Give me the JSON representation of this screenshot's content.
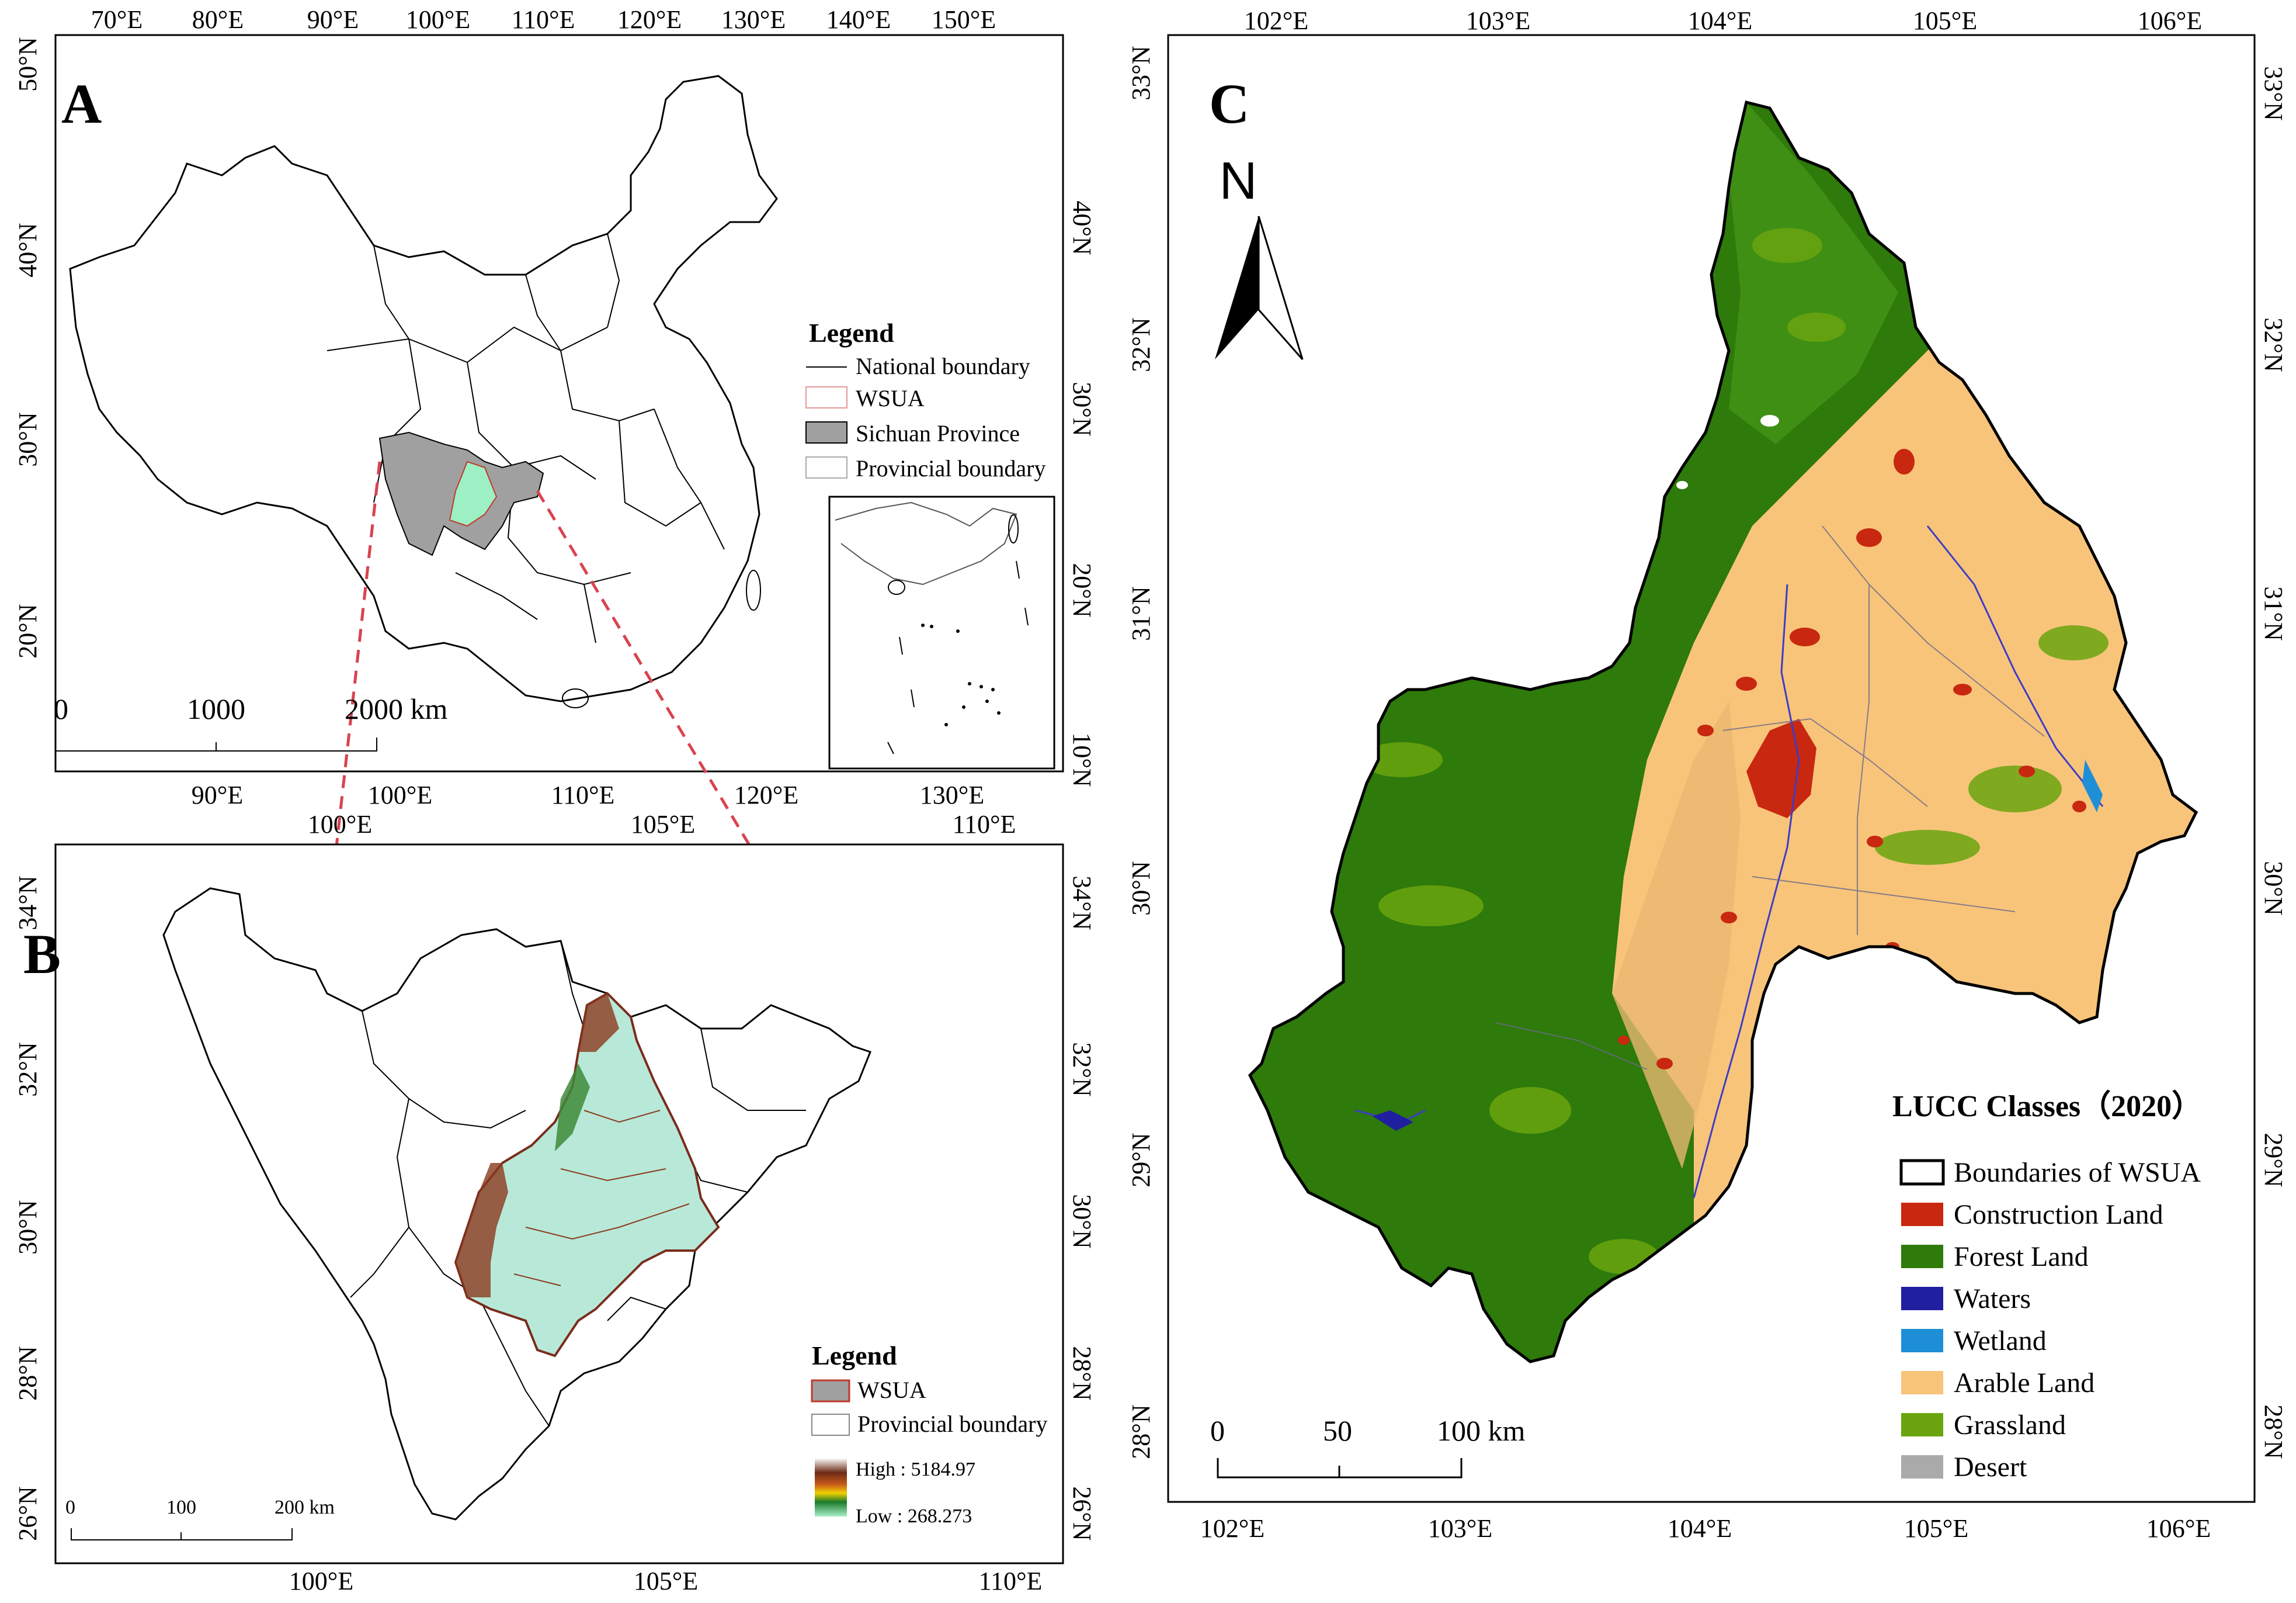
{
  "panelA": {
    "label": "A",
    "top_ticks": [
      "70°E",
      "80°E",
      "90°E",
      "100°E",
      "110°E",
      "120°E",
      "130°E",
      "140°E",
      "150°E"
    ],
    "bottom_ticks": [
      "90°E",
      "100°E",
      "110°E",
      "120°E",
      "130°E"
    ],
    "left_ticks": [
      "50°N",
      "40°N",
      "30°N",
      "20°N"
    ],
    "right_ticks": [
      "40°N",
      "30°N",
      "20°N",
      "10°N"
    ],
    "legend": {
      "title": "Legend",
      "items": [
        "National boundary",
        "WSUA",
        "Sichuan Province",
        "Provincial boundary"
      ]
    },
    "scale": {
      "labels": [
        "0",
        "1000",
        "2000 km"
      ]
    }
  },
  "panelB": {
    "label": "B",
    "top_ticks": [
      "100°E",
      "105°E",
      "110°E"
    ],
    "bottom_ticks": [
      "100°E",
      "105°E",
      "110°E"
    ],
    "left_ticks": [
      "34°N",
      "32°N",
      "30°N",
      "28°N",
      "26°N"
    ],
    "right_ticks": [
      "34°N",
      "32°N",
      "30°N",
      "28°N",
      "26°N"
    ],
    "legend": {
      "title": "Legend",
      "items": [
        "WSUA",
        "Provincial boundary"
      ],
      "high": "High : 5184.97",
      "low": "Low : 268.273"
    },
    "scale": {
      "labels": [
        "0",
        "100",
        "200 km"
      ]
    }
  },
  "panelC": {
    "label": "C",
    "north": "N",
    "top_ticks": [
      "102°E",
      "103°E",
      "104°E",
      "105°E",
      "106°E"
    ],
    "bottom_ticks": [
      "102°E",
      "103°E",
      "104°E",
      "105°E",
      "106°E"
    ],
    "left_ticks": [
      "33°N",
      "32°N",
      "31°N",
      "30°N",
      "29°N",
      "28°N"
    ],
    "right_ticks": [
      "33°N",
      "32°N",
      "31°N",
      "30°N",
      "29°N",
      "28°N"
    ],
    "legend": {
      "title": "LUCC Classes（2020）",
      "items": [
        {
          "label": "Boundaries of  WSUA",
          "color": "#ffffff"
        },
        {
          "label": "Construction Land",
          "color": "#c8280f"
        },
        {
          "label": "Forest Land",
          "color": "#2e7a0a"
        },
        {
          "label": "Waters",
          "color": "#1f1fa0"
        },
        {
          "label": "Wetland",
          "color": "#1e8fd6"
        },
        {
          "label": "Arable Land",
          "color": "#f8c47a"
        },
        {
          "label": "Grassland",
          "color": "#6aa50f"
        },
        {
          "label": "Desert",
          "color": "#aaaaaa"
        }
      ]
    },
    "scale": {
      "labels": [
        "0",
        "50",
        "100 km"
      ]
    }
  }
}
